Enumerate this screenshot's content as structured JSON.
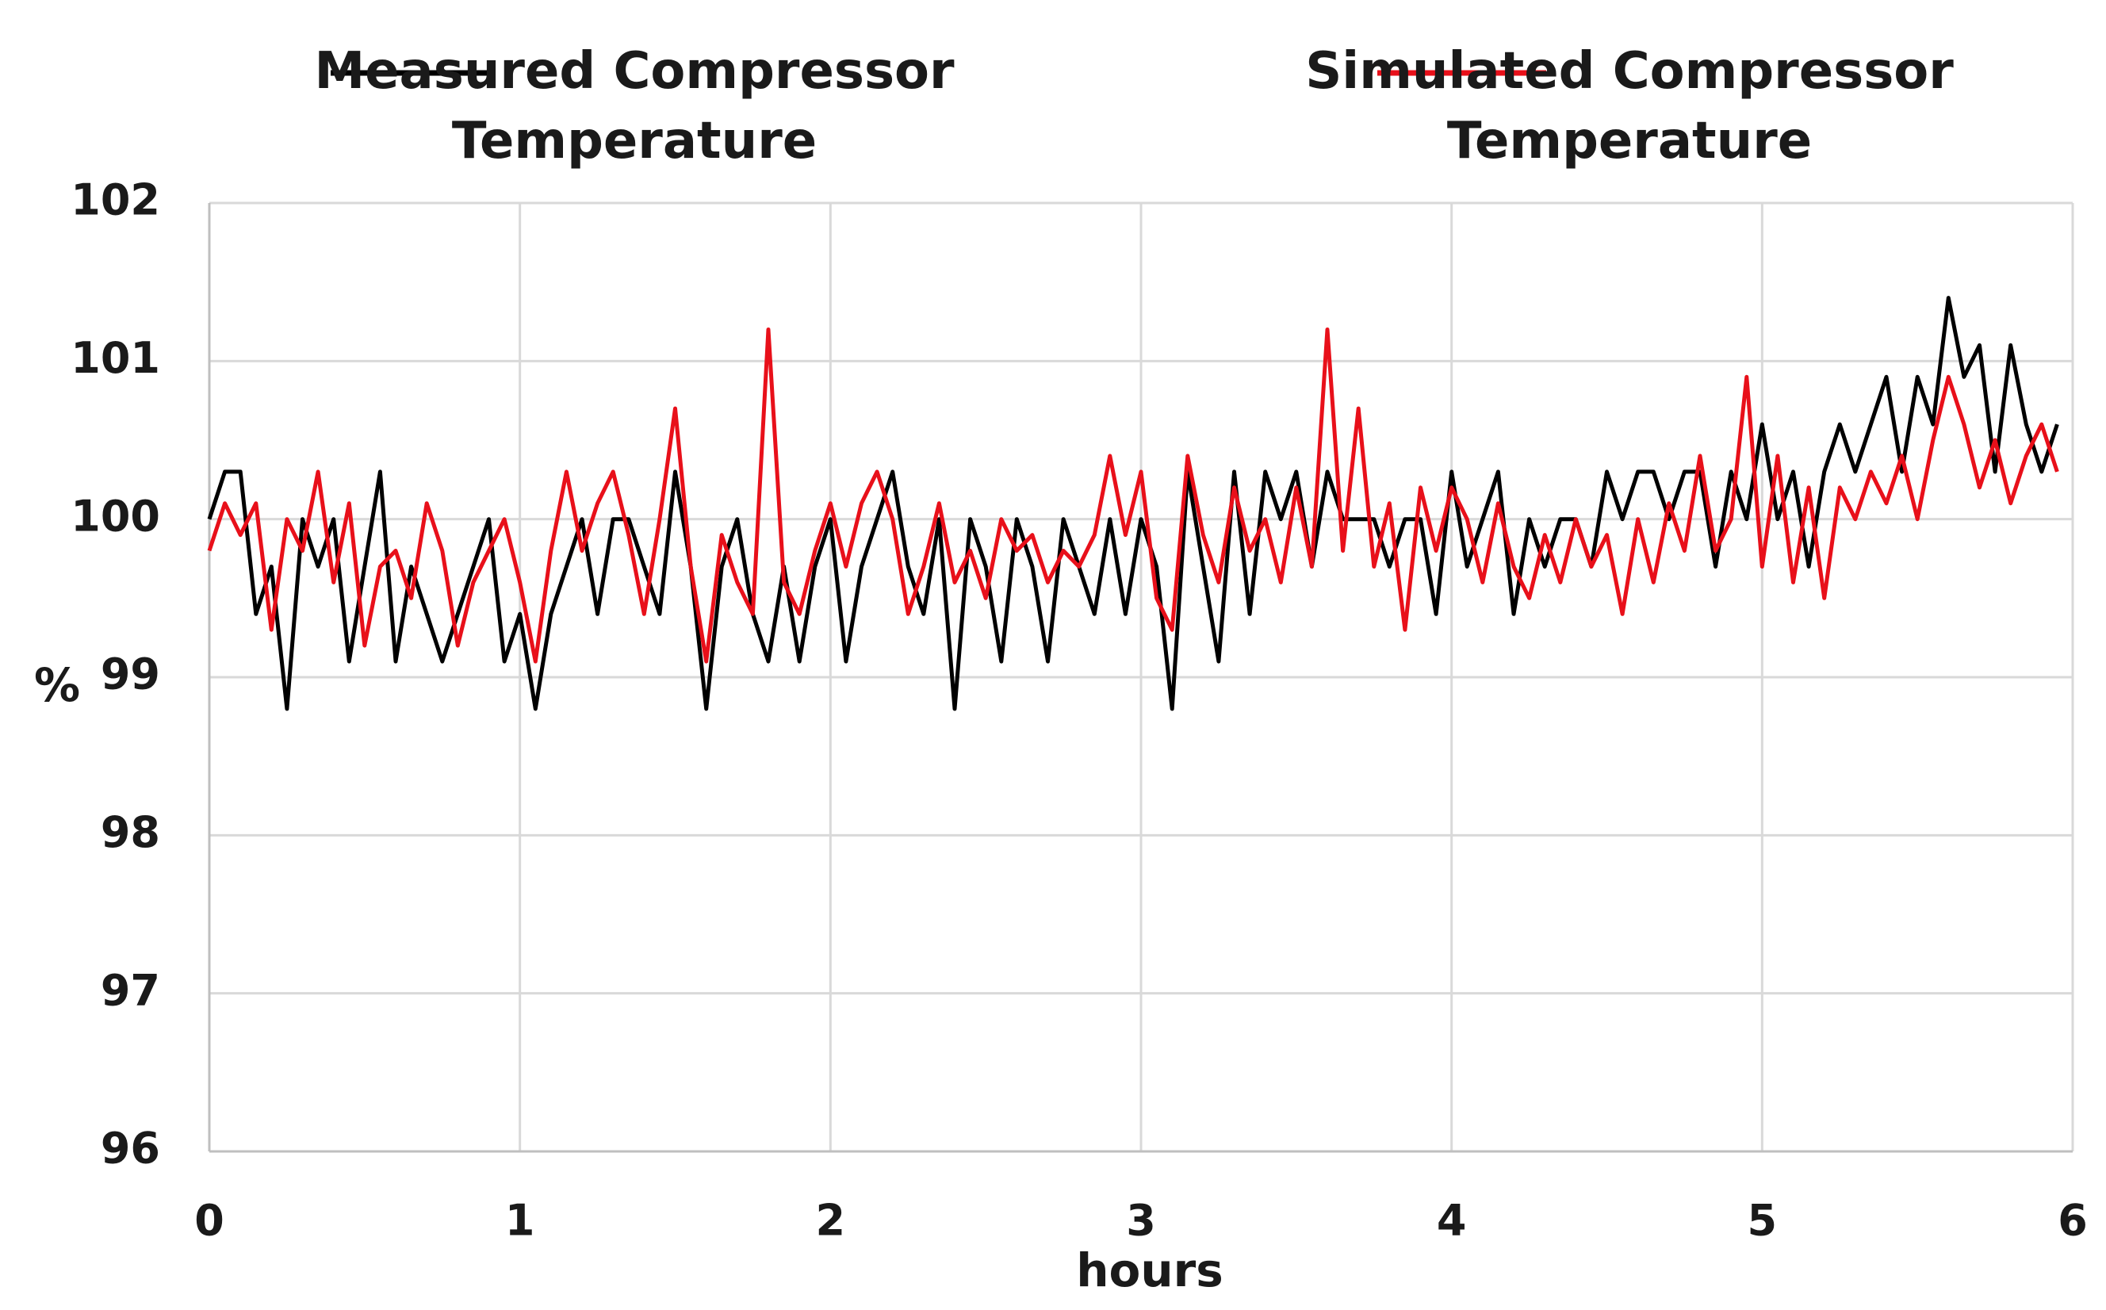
{
  "chart_data": {
    "type": "line",
    "x_label": "hours",
    "y_label": "%",
    "x": [
      0,
      0.05,
      0.1,
      0.15,
      0.2,
      0.25,
      0.3,
      0.35,
      0.4,
      0.45,
      0.5,
      0.55,
      0.6,
      0.65,
      0.7,
      0.75,
      0.8,
      0.85,
      0.9,
      0.95,
      1,
      1.05,
      1.1,
      1.15,
      1.2,
      1.25,
      1.3,
      1.35,
      1.4,
      1.45,
      1.5,
      1.55,
      1.6,
      1.65,
      1.7,
      1.75,
      1.8,
      1.85,
      1.9,
      1.95,
      2,
      2.05,
      2.1,
      2.15,
      2.2,
      2.25,
      2.3,
      2.35,
      2.4,
      2.45,
      2.5,
      2.55,
      2.6,
      2.65,
      2.7,
      2.75,
      2.8,
      2.85,
      2.9,
      2.95,
      3,
      3.05,
      3.1,
      3.15,
      3.2,
      3.25,
      3.3,
      3.35,
      3.4,
      3.45,
      3.5,
      3.55,
      3.6,
      3.65,
      3.7,
      3.75,
      3.8,
      3.85,
      3.9,
      3.95,
      4,
      4.05,
      4.1,
      4.15,
      4.2,
      4.25,
      4.3,
      4.35,
      4.4,
      4.45,
      4.5,
      4.55,
      4.6,
      4.65,
      4.7,
      4.75,
      4.8,
      4.85,
      4.9,
      4.95,
      5,
      5.05,
      5.1,
      5.15,
      5.2,
      5.25,
      5.3,
      5.35,
      5.4,
      5.45,
      5.5,
      5.55,
      5.6,
      5.65,
      5.7,
      5.75,
      5.8,
      5.85,
      5.9,
      5.95
    ],
    "series": [
      {
        "name": "Measured Compressor Temperature",
        "color": "#000000",
        "values": [
          100.0,
          100.3,
          100.3,
          99.4,
          99.7,
          98.8,
          100.0,
          99.7,
          100.0,
          99.1,
          99.7,
          100.3,
          99.1,
          99.7,
          99.4,
          99.1,
          99.4,
          99.7,
          100.0,
          99.1,
          99.4,
          98.8,
          99.4,
          99.7,
          100.0,
          99.4,
          100.0,
          100.0,
          99.7,
          99.4,
          100.3,
          99.7,
          98.8,
          99.7,
          100.0,
          99.4,
          99.1,
          99.7,
          99.1,
          99.7,
          100.0,
          99.1,
          99.7,
          100.0,
          100.3,
          99.7,
          99.4,
          100.0,
          98.8,
          100.0,
          99.7,
          99.1,
          100.0,
          99.7,
          99.1,
          100.0,
          99.7,
          99.4,
          100.0,
          99.4,
          100.0,
          99.7,
          98.8,
          100.3,
          99.7,
          99.1,
          100.3,
          99.4,
          100.3,
          100.0,
          100.3,
          99.7,
          100.3,
          100.0,
          100.0,
          100.0,
          99.7,
          100.0,
          100.0,
          99.4,
          100.3,
          99.7,
          100.0,
          100.3,
          99.4,
          100.0,
          99.7,
          100.0,
          100.0,
          99.7,
          100.3,
          100.0,
          100.3,
          100.3,
          100.0,
          100.3,
          100.3,
          99.7,
          100.3,
          100.0,
          100.6,
          100.0,
          100.3,
          99.7,
          100.3,
          100.6,
          100.3,
          100.6,
          100.9,
          100.3,
          100.9,
          100.6,
          101.4,
          100.9,
          101.1,
          100.3,
          101.1,
          100.6,
          100.3,
          100.6
        ]
      },
      {
        "name": "Simulated Compressor Temperature",
        "color": "#e8101a",
        "values": [
          99.8,
          100.1,
          99.9,
          100.1,
          99.3,
          100.0,
          99.8,
          100.3,
          99.6,
          100.1,
          99.2,
          99.7,
          99.8,
          99.5,
          100.1,
          99.8,
          99.2,
          99.6,
          99.8,
          100.0,
          99.6,
          99.1,
          99.8,
          100.3,
          99.8,
          100.1,
          100.3,
          99.9,
          99.4,
          100.0,
          100.7,
          99.7,
          99.1,
          99.9,
          99.6,
          99.4,
          101.2,
          99.6,
          99.4,
          99.8,
          100.1,
          99.7,
          100.1,
          100.3,
          100.0,
          99.4,
          99.7,
          100.1,
          99.6,
          99.8,
          99.5,
          100.0,
          99.8,
          99.9,
          99.6,
          99.8,
          99.7,
          99.9,
          100.4,
          99.9,
          100.3,
          99.5,
          99.3,
          100.4,
          99.9,
          99.6,
          100.2,
          99.8,
          100.0,
          99.6,
          100.2,
          99.7,
          101.2,
          99.8,
          100.7,
          99.7,
          100.1,
          99.3,
          100.2,
          99.8,
          100.2,
          100.0,
          99.6,
          100.1,
          99.7,
          99.5,
          99.9,
          99.6,
          100.0,
          99.7,
          99.9,
          99.4,
          100.0,
          99.6,
          100.1,
          99.8,
          100.4,
          99.8,
          100.0,
          100.9,
          99.7,
          100.4,
          99.6,
          100.2,
          99.5,
          100.2,
          100.0,
          100.3,
          100.1,
          100.4,
          100.0,
          100.5,
          100.9,
          100.6,
          100.2,
          100.5,
          100.1,
          100.4,
          100.6,
          100.3
        ]
      }
    ],
    "xlim": [
      0,
      6
    ],
    "xticks": [
      0,
      1,
      2,
      3,
      4,
      5,
      6
    ],
    "ylim": [
      96,
      102
    ],
    "yticks": [
      96,
      97,
      98,
      99,
      100,
      101,
      102
    ],
    "grid": true
  }
}
